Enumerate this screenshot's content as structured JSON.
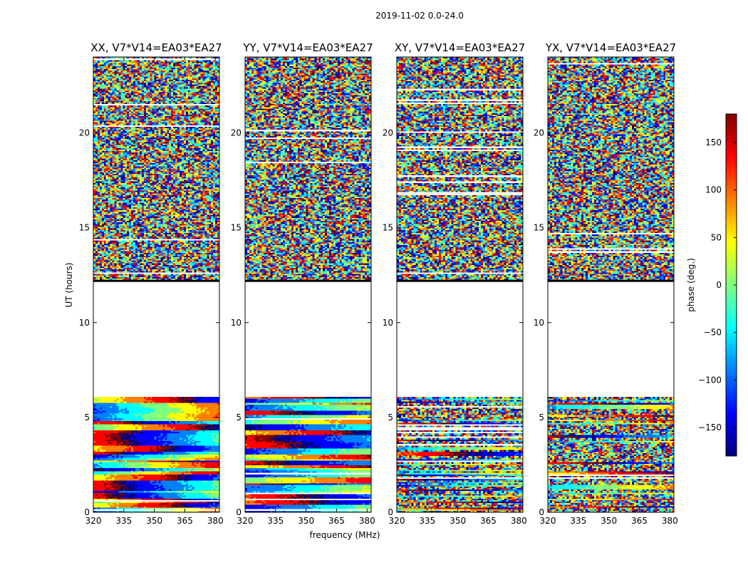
{
  "figure": {
    "suptitle": "2019-11-02 0.0-24.0",
    "xlabel": "frequency (MHz)",
    "ylabel": "UT (hours)"
  },
  "colorbar": {
    "label": "phase (deg.)",
    "range": [
      -180,
      180
    ],
    "ticks": [
      150,
      100,
      50,
      0,
      -50,
      -100,
      -150
    ],
    "tick_labels": [
      "150",
      "100",
      "50",
      "0",
      "−50",
      "−100",
      "−150"
    ],
    "colormap": [
      "#00007f",
      "#0000ff",
      "#007fff",
      "#00ffff",
      "#7fff7f",
      "#ffff00",
      "#ff7f00",
      "#ff0000",
      "#7f0000"
    ]
  },
  "chart_data": {
    "type": "heatmap",
    "x_range": [
      320,
      382
    ],
    "x_ticks": [
      320,
      335,
      350,
      365,
      380
    ],
    "x_tick_labels": [
      "320",
      "335",
      "350",
      "365",
      "380"
    ],
    "y_range": [
      0,
      24
    ],
    "y_ticks": [
      0,
      5,
      10,
      15,
      20
    ],
    "y_tick_labels": [
      "0",
      "5",
      "10",
      "15",
      "20"
    ],
    "gap_hours": [
      6.1,
      12.2
    ],
    "panels": [
      {
        "title": "XX, V7*V14=EA03*EA27",
        "seed": 11
      },
      {
        "title": "YY, V7*V14=EA03*EA27",
        "seed": 23
      },
      {
        "title": "XY, V7*V14=EA03*EA27",
        "seed": 37
      },
      {
        "title": "YX, V7*V14=EA03*EA27",
        "seed": 53
      }
    ]
  }
}
